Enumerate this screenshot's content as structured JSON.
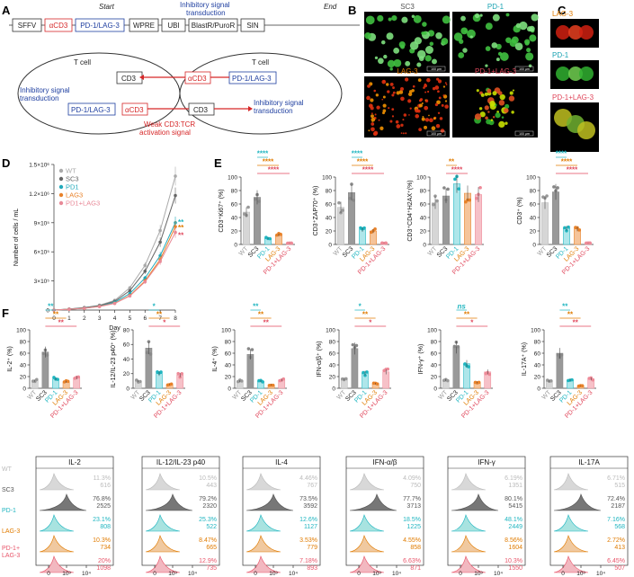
{
  "panel_labels": [
    "A",
    "B",
    "C",
    "D",
    "E",
    "F"
  ],
  "constructA": {
    "start": "Start",
    "end": "End",
    "elements": [
      "SFFV",
      "αCD3",
      "PD-1/LAG-3",
      "WPRE",
      "UBI",
      "BlastR/PuroR",
      "SIN"
    ],
    "colors": [
      "#222222",
      "#d62728",
      "#1f3fa0",
      "#222222",
      "#222222",
      "#222222",
      "#222222"
    ],
    "top_label": "Inhibitory signal\ntransduction",
    "cell1": "T cell",
    "cell2": "T cell",
    "cd3": "CD3",
    "pd1lag3": "PD-1/LAG-3",
    "acd3": "αCD3",
    "inhib": "Inhibitory signal\ntransduction",
    "weak": "Weak CD3:TCR\nactivation signal"
  },
  "imagesB": [
    {
      "label": "SC3",
      "color": "#555555",
      "scale": "100 µm"
    },
    {
      "label": "PD-1",
      "color": "#1aa3b3",
      "scale": "100 µm"
    },
    {
      "label": "LAG-3",
      "color": "#e07b00",
      "scale": "100 µm"
    },
    {
      "label": "PD-1+LAG-3",
      "color": "#e0475b",
      "scale": "100 µm"
    }
  ],
  "imagesC": [
    {
      "label": "LAG-3",
      "color": "#e07b00"
    },
    {
      "label": "PD-1",
      "color": "#1aa3b3"
    },
    {
      "label": "PD-1+LAG-3",
      "color": "#e0475b"
    }
  ],
  "chart_data": [
    {
      "type": "line",
      "panel": "D",
      "xlabel": "Day",
      "ylabel": "Number of cells / mL",
      "x": [
        0,
        1,
        2,
        3,
        4,
        5,
        6,
        7,
        8
      ],
      "ylim": [
        0,
        1500000
      ],
      "yticks": [
        "0",
        "3×10⁵",
        "6×10⁵",
        "9×10⁵",
        "1.2×10⁶",
        "1.5×10⁶"
      ],
      "series": [
        {
          "name": "WT",
          "color": "#aaaaaa",
          "values": [
            0,
            10000,
            25000,
            50000,
            100000,
            230000,
            460000,
            820000,
            1380000
          ]
        },
        {
          "name": "SC3",
          "color": "#666666",
          "values": [
            0,
            10000,
            25000,
            45000,
            90000,
            200000,
            400000,
            700000,
            1180000
          ]
        },
        {
          "name": "PD1",
          "color": "#22aabb",
          "values": [
            0,
            8000,
            20000,
            40000,
            80000,
            170000,
            330000,
            560000,
            900000
          ]
        },
        {
          "name": "LAG3",
          "color": "#e8822a",
          "values": [
            0,
            8000,
            18000,
            38000,
            70000,
            150000,
            300000,
            520000,
            860000
          ]
        },
        {
          "name": "PD1+LAG3",
          "color": "#e88a98",
          "values": [
            0,
            8000,
            18000,
            36000,
            68000,
            145000,
            290000,
            500000,
            800000
          ]
        }
      ],
      "annotations": [
        "**",
        "**",
        "**"
      ]
    },
    {
      "type": "bar",
      "panel": "E",
      "categories": [
        "WT",
        "SC3",
        "PD-1",
        "LAG-3",
        "PD-1+LAG-3"
      ],
      "plots": [
        {
          "ylabel": "CD3⁺Ki67⁺ (%)",
          "yticks": [
            "0",
            "20",
            "40",
            "60",
            "80",
            "100"
          ],
          "ylim": [
            0,
            100
          ],
          "values": [
            48,
            70,
            9,
            14,
            2
          ],
          "sig": [
            "****",
            "****",
            "****"
          ]
        },
        {
          "ylabel": "CD3⁺ZAP70⁺ (%)",
          "yticks": [
            "0",
            "20",
            "40",
            "60",
            "80",
            "100"
          ],
          "ylim": [
            0,
            100
          ],
          "values": [
            55,
            77,
            22,
            20,
            2
          ],
          "sig": [
            "****",
            "****",
            "****"
          ]
        },
        {
          "ylabel": "CD3⁺CD4⁺H2AX⁺(%)",
          "yticks": [
            "0",
            "20",
            "40",
            "60",
            "80",
            "100"
          ],
          "ylim": [
            0,
            100
          ],
          "values": [
            62,
            72,
            90,
            76,
            74
          ],
          "sig": [
            "**",
            "****"
          ]
        },
        {
          "ylabel": "CD3⁺ (%)",
          "yticks": [
            "0",
            "20",
            "40",
            "60",
            "80",
            "100"
          ],
          "ylim": [
            0,
            100
          ],
          "values": [
            62,
            78,
            24,
            23,
            2
          ],
          "sig": [
            "****",
            "****",
            "****"
          ]
        }
      ]
    },
    {
      "type": "bar",
      "panel": "F",
      "categories": [
        "WT",
        "SC3",
        "PD-1",
        "LAG-3",
        "PD-1+LAG-3"
      ],
      "plots": [
        {
          "ylabel": "IL-2⁺ (%)",
          "yticks": [
            "0",
            "20",
            "40",
            "60",
            "80",
            "100"
          ],
          "ylim": [
            0,
            100
          ],
          "values": [
            13,
            62,
            16,
            11,
            18
          ],
          "sig": [
            "**",
            "**",
            "**"
          ]
        },
        {
          "ylabel": "IL-12/IL-23 p40⁺ (%)",
          "yticks": [
            "0",
            "20",
            "40",
            "60",
            "80"
          ],
          "ylim": [
            0,
            80
          ],
          "values": [
            10,
            55,
            20,
            5,
            18
          ],
          "sig": [
            "*",
            "**",
            "*"
          ]
        },
        {
          "ylabel": "IL-4⁺ (%)",
          "yticks": [
            "0",
            "20",
            "40",
            "60",
            "80",
            "100"
          ],
          "ylim": [
            0,
            100
          ],
          "values": [
            12,
            58,
            12,
            6,
            14
          ],
          "sig": [
            "**",
            "**",
            "**"
          ]
        },
        {
          "ylabel": "IFN-α/β⁺ (%)",
          "yticks": [
            "0",
            "20",
            "40",
            "60",
            "80",
            "100"
          ],
          "ylim": [
            0,
            100
          ],
          "values": [
            14,
            68,
            26,
            8,
            28
          ],
          "sig": [
            "*",
            "**",
            "*"
          ]
        },
        {
          "ylabel": "IFN-γ⁺ (%)",
          "yticks": [
            "0",
            "20",
            "40",
            "60",
            "80",
            "100"
          ],
          "ylim": [
            0,
            100
          ],
          "values": [
            14,
            70,
            42,
            10,
            28
          ],
          "sig": [
            "ns",
            "**",
            "*"
          ]
        },
        {
          "ylabel": "IL-17A⁺ (%)",
          "yticks": [
            "0",
            "20",
            "40",
            "60",
            "80",
            "100"
          ],
          "ylim": [
            0,
            100
          ],
          "values": [
            12,
            60,
            14,
            4,
            16
          ],
          "sig": [
            "**",
            "**",
            "**"
          ]
        }
      ]
    },
    {
      "type": "histogram",
      "panel": "F-flow",
      "rows": [
        "WT",
        "SC3",
        "PD-1",
        "LAG-3",
        "PD-1+\nLAG-3"
      ],
      "row_colors": [
        "#bbbbbb",
        "#555555",
        "#1fb5c0",
        "#e07b00",
        "#e8556a"
      ],
      "fills": [
        "#d8d8d8",
        "#777777",
        "#a8e3e0",
        "#f0c9a0",
        "#f2b8c0"
      ],
      "xticks": [
        "0",
        "10³",
        "10⁴"
      ],
      "panels": [
        {
          "title": "IL-2",
          "labels": [
            [
              "11.3%",
              "616"
            ],
            [
              "76.8%",
              "2525"
            ],
            [
              "23.1%",
              "808"
            ],
            [
              "10.3%",
              "734"
            ],
            [
              "20%",
              "1098"
            ]
          ]
        },
        {
          "title": "IL-12/IL-23 p40",
          "labels": [
            [
              "10.5%",
              "443"
            ],
            [
              "79.2%",
              "2320"
            ],
            [
              "25.3%",
              "522"
            ],
            [
              "8.47%",
              "665"
            ],
            [
              "12.9%",
              "735"
            ]
          ]
        },
        {
          "title": "IL-4",
          "labels": [
            [
              "4.46%",
              "767"
            ],
            [
              "73.5%",
              "3592"
            ],
            [
              "12.6%",
              "1127"
            ],
            [
              "3.53%",
              "779"
            ],
            [
              "7.18%",
              "893"
            ]
          ]
        },
        {
          "title": "IFN-α/β",
          "labels": [
            [
              "4.09%",
              "750"
            ],
            [
              "77.7%",
              "3713"
            ],
            [
              "18.5%",
              "1225"
            ],
            [
              "4.55%",
              "858"
            ],
            [
              "6.63%",
              "871"
            ]
          ]
        },
        {
          "title": "IFN-γ",
          "labels": [
            [
              "6.19%",
              "1351"
            ],
            [
              "80.1%",
              "5415"
            ],
            [
              "48.1%",
              "2449"
            ],
            [
              "8.56%",
              "1604"
            ],
            [
              "10.3%",
              "1550"
            ]
          ]
        },
        {
          "title": "IL-17A",
          "labels": [
            [
              "6.71%",
              "515"
            ],
            [
              "72.4%",
              "2187"
            ],
            [
              "7.16%",
              "568"
            ],
            [
              "2.72%",
              "413"
            ],
            [
              "6.45%",
              "507"
            ]
          ]
        }
      ]
    }
  ],
  "colors": {
    "WT": "#bbbbbb",
    "SC3": "#888888",
    "PD-1": "#1fb5c0",
    "LAG-3": "#e8822a",
    "PD-1+LAG-3": "#ee8a98",
    "teal": "#1fb5c0",
    "orange": "#e07b00",
    "pink": "#e0475b"
  }
}
